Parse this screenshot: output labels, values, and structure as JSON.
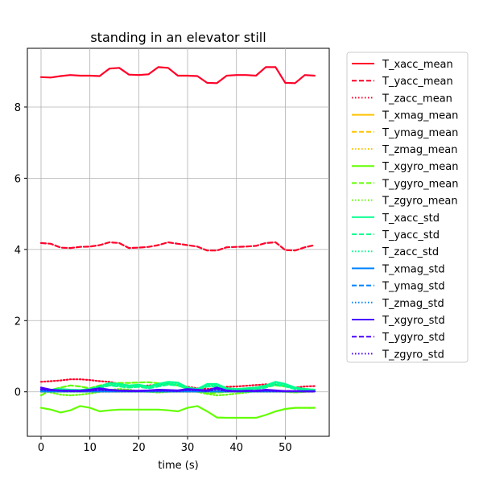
{
  "chart_data": {
    "type": "line",
    "title": "standing in an elevator still",
    "xlabel": "time (s)",
    "ylabel": "",
    "xlim": [
      -2.8,
      59.0
    ],
    "ylim": [
      -1.25,
      9.65
    ],
    "xticks": [
      0,
      10,
      20,
      30,
      40,
      50
    ],
    "yticks": [
      0,
      2,
      4,
      6,
      8
    ],
    "grid": true,
    "legend_position": "outside-right",
    "x": [
      0,
      2,
      4,
      6,
      8,
      10,
      12,
      14,
      16,
      18,
      20,
      22,
      24,
      26,
      28,
      30,
      32,
      34,
      36,
      38,
      40,
      42,
      44,
      46,
      48,
      50,
      52,
      54,
      56
    ],
    "series": [
      {
        "name": "T_xacc_mean",
        "color": "#ff0029",
        "dash": "solid",
        "values": [
          8.84,
          8.83,
          8.87,
          8.9,
          8.88,
          8.88,
          8.87,
          9.08,
          9.1,
          8.91,
          8.9,
          8.92,
          9.12,
          9.1,
          8.88,
          8.88,
          8.87,
          8.68,
          8.67,
          8.88,
          8.9,
          8.9,
          8.88,
          9.12,
          9.12,
          8.68,
          8.67,
          8.9,
          8.88
        ]
      },
      {
        "name": "T_yacc_mean",
        "color": "#ff0029",
        "dash": "dashed",
        "values": [
          4.18,
          4.16,
          4.05,
          4.04,
          4.07,
          4.08,
          4.12,
          4.2,
          4.18,
          4.04,
          4.05,
          4.07,
          4.12,
          4.2,
          4.16,
          4.12,
          4.08,
          3.97,
          3.97,
          4.06,
          4.07,
          4.08,
          4.1,
          4.18,
          4.2,
          3.98,
          3.97,
          4.06,
          4.12
        ]
      },
      {
        "name": "T_zacc_mean",
        "color": "#ff0029",
        "dash": "dotted",
        "values": [
          0.28,
          0.3,
          0.32,
          0.35,
          0.35,
          0.33,
          0.3,
          0.28,
          0.22,
          0.18,
          0.15,
          0.18,
          0.2,
          0.22,
          0.18,
          0.14,
          0.1,
          0.08,
          0.1,
          0.14,
          0.15,
          0.17,
          0.19,
          0.21,
          0.2,
          0.16,
          0.12,
          0.15,
          0.16
        ]
      },
      {
        "name": "T_xmag_mean",
        "color": "#ffc400",
        "dash": "solid",
        "values": [
          0.02,
          0.02,
          0.02,
          0.02,
          0.02,
          0.02,
          0.02,
          0.02,
          0.02,
          0.02,
          0.02,
          0.02,
          0.02,
          0.02,
          0.02,
          0.02,
          0.02,
          0.02,
          0.02,
          0.02,
          0.02,
          0.02,
          0.02,
          0.02,
          0.02,
          0.02,
          0.02,
          0.02,
          0.02
        ]
      },
      {
        "name": "T_ymag_mean",
        "color": "#ffc400",
        "dash": "dashed",
        "values": [
          0.01,
          0.01,
          0.01,
          0.01,
          0.01,
          0.01,
          0.01,
          0.01,
          0.01,
          0.01,
          0.01,
          0.01,
          0.01,
          0.01,
          0.01,
          0.01,
          0.01,
          0.01,
          0.01,
          0.01,
          0.01,
          0.01,
          0.01,
          0.01,
          0.01,
          0.01,
          0.01,
          0.01,
          0.01
        ]
      },
      {
        "name": "T_zmag_mean",
        "color": "#ffc400",
        "dash": "dotted",
        "values": [
          0.0,
          0.0,
          0.0,
          0.0,
          0.0,
          0.0,
          0.0,
          0.0,
          0.0,
          0.0,
          0.0,
          0.0,
          0.0,
          0.0,
          0.0,
          0.0,
          0.0,
          0.0,
          0.0,
          0.0,
          0.0,
          0.0,
          0.0,
          0.0,
          0.0,
          0.0,
          0.0,
          0.0,
          0.0
        ]
      },
      {
        "name": "T_xgyro_mean",
        "color": "#62ff00",
        "dash": "solid",
        "values": [
          -0.45,
          -0.5,
          -0.58,
          -0.52,
          -0.4,
          -0.45,
          -0.55,
          -0.52,
          -0.5,
          -0.5,
          -0.5,
          -0.5,
          -0.5,
          -0.52,
          -0.55,
          -0.45,
          -0.4,
          -0.55,
          -0.72,
          -0.73,
          -0.73,
          -0.73,
          -0.73,
          -0.65,
          -0.55,
          -0.48,
          -0.45,
          -0.45,
          -0.45
        ]
      },
      {
        "name": "T_ygyro_mean",
        "color": "#62ff00",
        "dash": "dashed",
        "values": [
          -0.1,
          0.05,
          0.12,
          0.18,
          0.15,
          0.1,
          0.18,
          0.22,
          0.25,
          0.25,
          0.26,
          0.27,
          0.24,
          0.22,
          0.18,
          0.08,
          0.02,
          -0.05,
          -0.02,
          0.0,
          0.02,
          0.05,
          0.1,
          0.15,
          0.18,
          0.15,
          0.1,
          0.08,
          0.06
        ]
      },
      {
        "name": "T_zgyro_mean",
        "color": "#62ff00",
        "dash": "dotted",
        "values": [
          0.05,
          -0.02,
          -0.08,
          -0.1,
          -0.08,
          -0.05,
          0.0,
          0.05,
          0.08,
          0.06,
          0.02,
          0.0,
          -0.02,
          0.0,
          0.02,
          0.04,
          0.0,
          -0.06,
          -0.1,
          -0.08,
          -0.05,
          -0.02,
          0.02,
          0.05,
          0.03,
          0.0,
          -0.02,
          0.0,
          0.02
        ]
      },
      {
        "name": "T_xacc_std",
        "color": "#00ff8e",
        "dash": "solid",
        "values": [
          0.05,
          0.06,
          0.08,
          0.06,
          0.05,
          0.08,
          0.15,
          0.25,
          0.22,
          0.18,
          0.2,
          0.15,
          0.22,
          0.28,
          0.26,
          0.12,
          0.08,
          0.22,
          0.22,
          0.1,
          0.08,
          0.1,
          0.12,
          0.18,
          0.28,
          0.22,
          0.12,
          0.08,
          0.06
        ]
      },
      {
        "name": "T_yacc_std",
        "color": "#00ff8e",
        "dash": "dashed",
        "values": [
          0.03,
          0.04,
          0.05,
          0.04,
          0.03,
          0.05,
          0.1,
          0.18,
          0.15,
          0.12,
          0.14,
          0.1,
          0.15,
          0.2,
          0.18,
          0.08,
          0.05,
          0.15,
          0.15,
          0.06,
          0.05,
          0.07,
          0.08,
          0.12,
          0.2,
          0.15,
          0.08,
          0.05,
          0.04
        ]
      },
      {
        "name": "T_zacc_std",
        "color": "#00ff8e",
        "dash": "dotted",
        "values": [
          0.04,
          0.05,
          0.06,
          0.05,
          0.04,
          0.06,
          0.12,
          0.2,
          0.18,
          0.14,
          0.16,
          0.12,
          0.18,
          0.24,
          0.22,
          0.1,
          0.06,
          0.18,
          0.18,
          0.08,
          0.06,
          0.08,
          0.1,
          0.15,
          0.24,
          0.18,
          0.1,
          0.06,
          0.05
        ]
      },
      {
        "name": "T_xmag_std",
        "color": "#0083ff",
        "dash": "solid",
        "values": [
          0.01,
          0.01,
          0.01,
          0.01,
          0.01,
          0.01,
          0.01,
          0.01,
          0.01,
          0.01,
          0.01,
          0.01,
          0.01,
          0.01,
          0.01,
          0.01,
          0.01,
          0.01,
          0.01,
          0.01,
          0.01,
          0.01,
          0.01,
          0.01,
          0.01,
          0.01,
          0.01,
          0.01,
          0.01
        ]
      },
      {
        "name": "T_ymag_std",
        "color": "#0083ff",
        "dash": "dashed",
        "values": [
          0.01,
          0.01,
          0.01,
          0.01,
          0.01,
          0.01,
          0.01,
          0.01,
          0.01,
          0.01,
          0.01,
          0.01,
          0.01,
          0.01,
          0.01,
          0.01,
          0.01,
          0.01,
          0.01,
          0.01,
          0.01,
          0.01,
          0.01,
          0.01,
          0.01,
          0.01,
          0.01,
          0.01,
          0.01
        ]
      },
      {
        "name": "T_zmag_std",
        "color": "#0083ff",
        "dash": "dotted",
        "values": [
          0.01,
          0.01,
          0.01,
          0.01,
          0.01,
          0.01,
          0.01,
          0.01,
          0.01,
          0.01,
          0.01,
          0.01,
          0.01,
          0.01,
          0.01,
          0.01,
          0.01,
          0.01,
          0.01,
          0.01,
          0.01,
          0.01,
          0.01,
          0.01,
          0.01,
          0.01,
          0.01,
          0.01,
          0.01
        ]
      },
      {
        "name": "T_xgyro_std",
        "color": "#4900ff",
        "dash": "solid",
        "values": [
          0.12,
          0.06,
          0.04,
          0.03,
          0.03,
          0.06,
          0.1,
          0.06,
          0.04,
          0.03,
          0.03,
          0.04,
          0.06,
          0.05,
          0.04,
          0.08,
          0.06,
          0.04,
          0.12,
          0.04,
          0.02,
          0.03,
          0.03,
          0.06,
          0.04,
          0.02,
          0.02,
          0.02,
          0.02
        ]
      },
      {
        "name": "T_ygyro_std",
        "color": "#4900ff",
        "dash": "dashed",
        "values": [
          0.08,
          0.05,
          0.03,
          0.02,
          0.02,
          0.04,
          0.07,
          0.05,
          0.03,
          0.02,
          0.02,
          0.03,
          0.04,
          0.04,
          0.03,
          0.06,
          0.05,
          0.03,
          0.09,
          0.03,
          0.02,
          0.02,
          0.02,
          0.04,
          0.03,
          0.02,
          0.02,
          0.01,
          0.01
        ]
      },
      {
        "name": "T_zgyro_std",
        "color": "#4900ff",
        "dash": "dotted",
        "values": [
          0.06,
          0.04,
          0.03,
          0.02,
          0.02,
          0.03,
          0.05,
          0.04,
          0.03,
          0.02,
          0.02,
          0.03,
          0.03,
          0.03,
          0.02,
          0.05,
          0.04,
          0.02,
          0.07,
          0.02,
          0.01,
          0.02,
          0.02,
          0.03,
          0.02,
          0.01,
          0.01,
          0.01,
          0.01
        ]
      }
    ]
  }
}
